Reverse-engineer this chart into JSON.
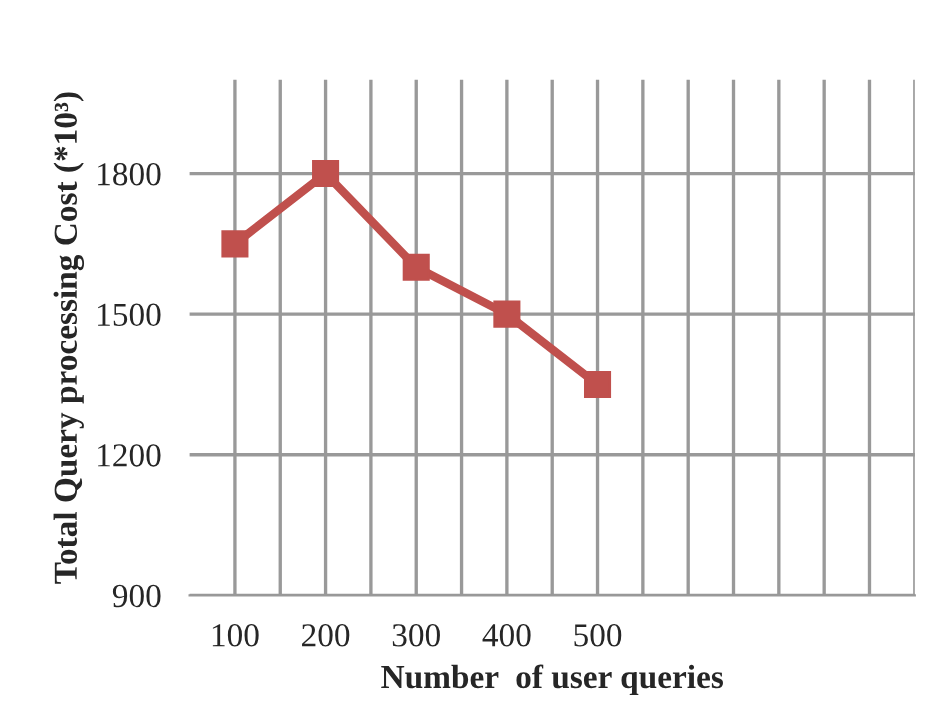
{
  "chart_data": {
    "type": "line",
    "xlabel": "Number  of user queries",
    "ylabel": "Total Query processing Cost (*10³)",
    "categories": [
      "100",
      "200",
      "300",
      "400",
      "500",
      null,
      null,
      null
    ],
    "series": [
      {
        "color": "#c0504d",
        "values": [
          1650,
          1800,
          1600,
          1500,
          1350,
          null,
          null,
          null
        ]
      }
    ],
    "ylim": [
      900,
      2000
    ],
    "yticks": [
      900,
      1200,
      1500,
      1800
    ],
    "grid": true,
    "marker": "square",
    "line_style": "solid"
  }
}
